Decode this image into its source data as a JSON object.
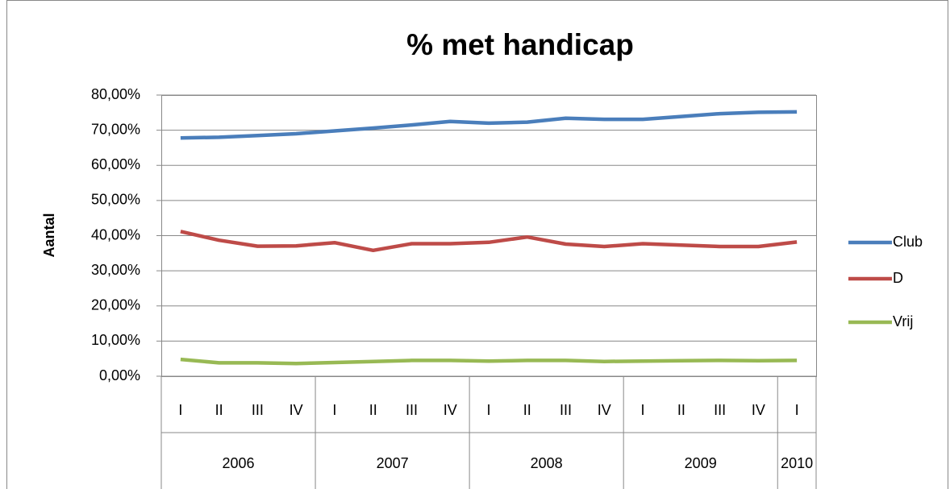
{
  "chart_data": {
    "type": "line",
    "title": "% met handicap",
    "y_label": "Aantal",
    "categories": [
      "I",
      "II",
      "III",
      "IV",
      "I",
      "II",
      "III",
      "IV",
      "I",
      "II",
      "III",
      "IV",
      "I",
      "II",
      "III",
      "IV",
      "I"
    ],
    "category_groups": [
      {
        "label": "2006",
        "count": 4
      },
      {
        "label": "2007",
        "count": 4
      },
      {
        "label": "2008",
        "count": 4
      },
      {
        "label": "2009",
        "count": 4
      },
      {
        "label": "2010",
        "count": 1
      }
    ],
    "series": [
      {
        "name": "Club",
        "color": "#4a7ebb",
        "values": [
          67.8,
          68.0,
          68.5,
          69.0,
          69.8,
          70.6,
          71.5,
          72.5,
          72.0,
          72.3,
          73.4,
          73.1,
          73.1,
          73.9,
          74.7,
          75.1,
          75.2
        ]
      },
      {
        "name": "D",
        "color": "#be4b48",
        "values": [
          41.2,
          38.7,
          37.0,
          37.1,
          38.0,
          35.8,
          37.7,
          37.7,
          38.1,
          39.6,
          37.6,
          36.9,
          37.7,
          37.3,
          36.9,
          36.9,
          38.2
        ]
      },
      {
        "name": "Vrij",
        "color": "#98b954",
        "values": [
          4.8,
          3.8,
          3.8,
          3.6,
          3.9,
          4.2,
          4.5,
          4.5,
          4.3,
          4.5,
          4.5,
          4.2,
          4.3,
          4.4,
          4.5,
          4.4,
          4.5
        ]
      }
    ],
    "ylim": [
      0,
      80
    ],
    "yticks": [
      {
        "value": 0,
        "label": "0,00%"
      },
      {
        "value": 10,
        "label": "10,00%"
      },
      {
        "value": 20,
        "label": "20,00%"
      },
      {
        "value": 30,
        "label": "30,00%"
      },
      {
        "value": 40,
        "label": "40,00%"
      },
      {
        "value": 50,
        "label": "50,00%"
      },
      {
        "value": 60,
        "label": "60,00%"
      },
      {
        "value": 70,
        "label": "70,00%"
      },
      {
        "value": 80,
        "label": "80,00%"
      }
    ],
    "grid": true,
    "legend": "right"
  }
}
